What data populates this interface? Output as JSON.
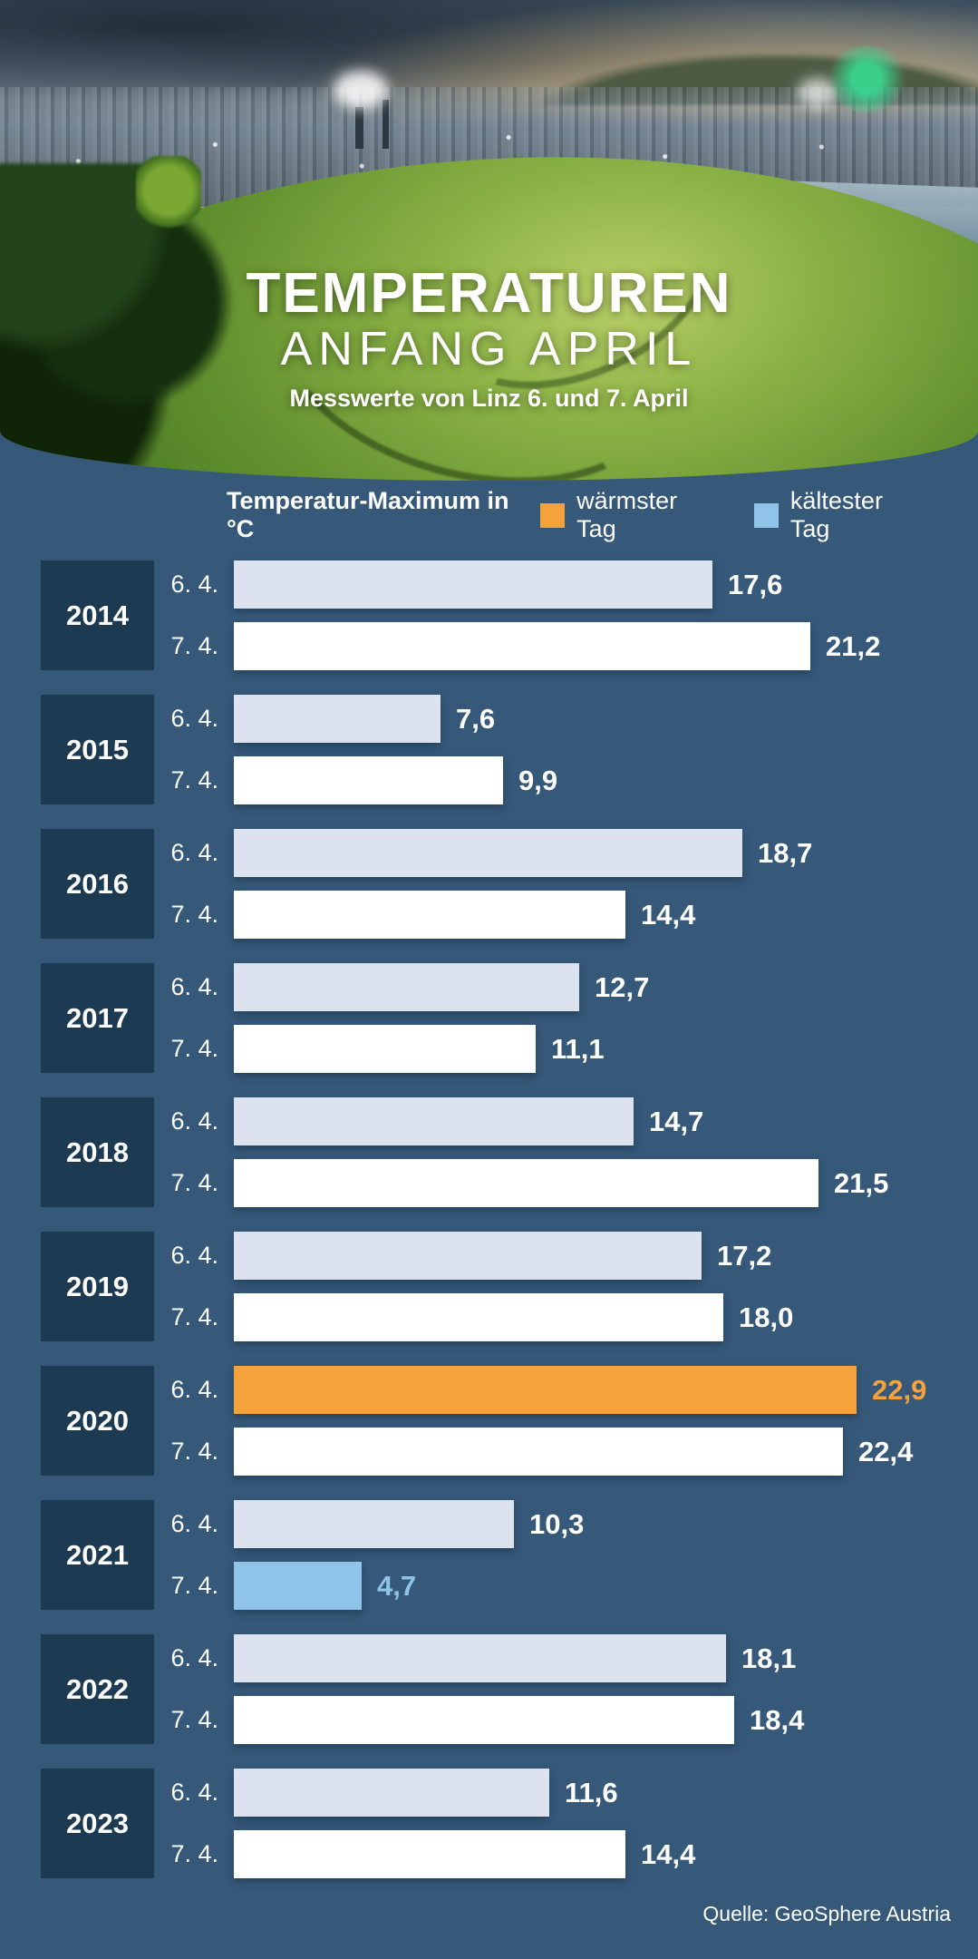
{
  "header": {
    "title": "TEMPERATUREN",
    "subtitle": "ANFANG APRIL",
    "tagline": "Messwerte von Linz 6. und 7. April"
  },
  "chart_data": {
    "type": "bar",
    "orientation": "horizontal",
    "unit_label": "Temperatur-Maximum in °C",
    "categories": [
      "2014",
      "2015",
      "2016",
      "2017",
      "2018",
      "2019",
      "2020",
      "2021",
      "2022",
      "2023"
    ],
    "series": [
      {
        "name": "6. 4.",
        "values": [
          17.6,
          7.6,
          18.7,
          12.7,
          14.7,
          17.2,
          22.9,
          10.3,
          18.1,
          11.6
        ]
      },
      {
        "name": "7. 4.",
        "values": [
          21.2,
          9.9,
          14.4,
          11.1,
          21.5,
          18.0,
          22.4,
          4.7,
          18.4,
          14.4
        ]
      }
    ],
    "value_decimal_separator": ",",
    "xlim": [
      0,
      24
    ],
    "grid": false,
    "legend_position": "top-right",
    "legend": [
      {
        "label": "wärmster Tag",
        "color": "#F6A23C",
        "highlight": {
          "year": "2020",
          "series": 0
        }
      },
      {
        "label": "kältester Tag",
        "color": "#8FC3E8",
        "highlight": {
          "year": "2021",
          "series": 1
        }
      }
    ],
    "bar_colors": {
      "series0": "#DDE3EE",
      "series1": "#FFFFFF"
    },
    "value_label_color": "#FFFFFF",
    "source": "Quelle: GeoSphere Austria"
  },
  "colors": {
    "background": "#36597A",
    "year_box": "#1C3A52",
    "text": "#FFFFFF"
  }
}
